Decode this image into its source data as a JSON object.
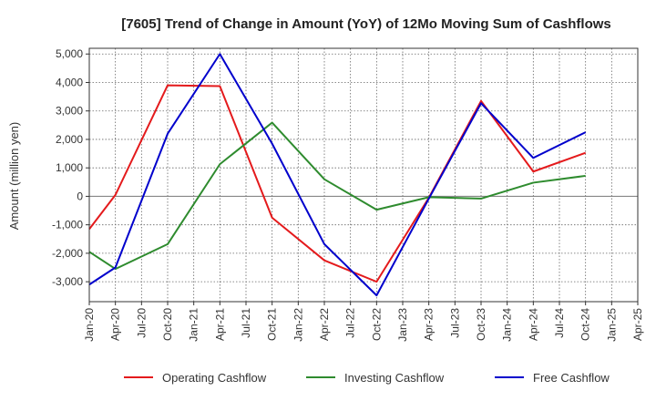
{
  "chart_data": {
    "type": "line",
    "title": "[7605]  Trend of Change in Amount (YoY) of 12Mo Moving Sum of Cashflows",
    "ylabel": "Amount (million yen)",
    "xlabel": "",
    "ylim": [
      -3700,
      5200
    ],
    "yticks": [
      5000,
      4000,
      3000,
      2000,
      1000,
      0,
      -1000,
      -2000,
      -3000
    ],
    "ytick_labels": [
      "5,000",
      "4,000",
      "3,000",
      "2,000",
      "1,000",
      "0",
      "-1,000",
      "-2,000",
      "-3,000"
    ],
    "categories": [
      "Jan-20",
      "Apr-20",
      "Jul-20",
      "Oct-20",
      "Jan-21",
      "Apr-21",
      "Jul-21",
      "Oct-21",
      "Jan-22",
      "Apr-22",
      "Jul-22",
      "Oct-22",
      "Jan-23",
      "Apr-23",
      "Jul-23",
      "Oct-23",
      "Jan-24",
      "Apr-24",
      "Jul-24",
      "Oct-24",
      "Jan-25",
      "Apr-25"
    ],
    "grid": true,
    "legend_position": "bottom",
    "series": [
      {
        "name": "Operating Cashflow",
        "color": "#e41a1c",
        "values": [
          -1150,
          50,
          null,
          3900,
          null,
          3870,
          null,
          -750,
          null,
          -2250,
          null,
          -3000,
          null,
          -50,
          null,
          3350,
          null,
          870,
          null,
          1530,
          null,
          null
        ]
      },
      {
        "name": "Investing Cashflow",
        "color": "#2e8b2e",
        "values": [
          -1950,
          -2550,
          null,
          -1680,
          null,
          1130,
          null,
          2590,
          null,
          600,
          null,
          -470,
          null,
          -30,
          null,
          -80,
          null,
          480,
          null,
          720,
          null,
          null
        ]
      },
      {
        "name": "Free Cashflow",
        "color": "#0000cc",
        "values": [
          -3100,
          -2500,
          null,
          2200,
          null,
          5000,
          null,
          1850,
          null,
          -1680,
          null,
          -3480,
          null,
          -80,
          null,
          3270,
          null,
          1350,
          null,
          2250,
          null,
          null
        ]
      }
    ]
  }
}
